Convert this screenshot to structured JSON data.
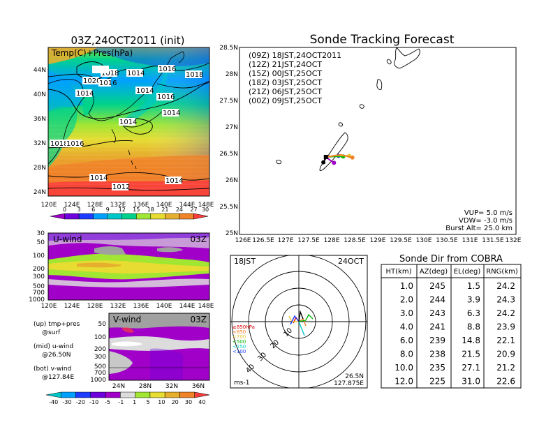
{
  "left_panel": {
    "title": "03Z,24OCT2011 (init)",
    "map_label": "Temp(C)+Pres(hPa)",
    "lat_ticks": [
      "44N",
      "40N",
      "36N",
      "32N",
      "28N",
      "24N"
    ],
    "lon_ticks": [
      "120E",
      "124E",
      "128E",
      "132E",
      "136E",
      "140E",
      "144E",
      "148E"
    ],
    "isobar_labels": [
      "1018",
      "1014",
      "1020",
      "1016",
      "1014",
      "1016",
      "1018",
      "1014",
      "1016",
      "1014",
      "1014",
      "1018",
      "1016",
      "1014",
      "1014",
      "1012",
      "1014"
    ],
    "colorbar_ticks": [
      "0",
      "3",
      "6",
      "9",
      "12",
      "15",
      "18",
      "21",
      "24",
      "27",
      "30"
    ],
    "colorbar_colors": [
      "#a000c8",
      "#6e00dc",
      "#1e3cff",
      "#00a0ff",
      "#00c8c8",
      "#00d28c",
      "#a0e632",
      "#e6dc32",
      "#e6af2d",
      "#f08228",
      "#fa3c3c"
    ]
  },
  "u_wind_panel": {
    "label": "U-wind",
    "time": "03Z",
    "y_ticks": [
      "30",
      "50",
      "100",
      "200",
      "300",
      "500",
      "700",
      "1000"
    ],
    "x_ticks": [
      "120E",
      "124E",
      "128E",
      "132E",
      "136E",
      "140E",
      "144E",
      "148E"
    ]
  },
  "v_wind_panel": {
    "label": "V-wind",
    "time": "03Z",
    "y_ticks": [
      "50",
      "100",
      "200",
      "300",
      "500",
      "700",
      "1000"
    ],
    "x_ticks": [
      "24N",
      "28N",
      "32N",
      "36N"
    ]
  },
  "legend_notes": [
    {
      "line1": "(up) tmp+pres",
      "line2": "@surf"
    },
    {
      "line1": "(mid) u-wind",
      "line2": "@26.50N"
    },
    {
      "line1": "(bot) v-wind",
      "line2": "@127.84E"
    }
  ],
  "wind_colorbar": {
    "ticks": [
      "-40",
      "-30",
      "-20",
      "-10",
      "-5",
      "-1",
      "1",
      "5",
      "10",
      "20",
      "30",
      "40"
    ],
    "colors": [
      "#00c8c8",
      "#00a0ff",
      "#1e3cff",
      "#6e00dc",
      "#a000c8",
      "#dcdcdc",
      "#a0e632",
      "#e6dc32",
      "#e6af2d",
      "#f08228",
      "#fa3c3c"
    ]
  },
  "tracking": {
    "title": "Sonde Tracking Forecast",
    "legend": [
      {
        "text": "(09Z)  18JST,24OCT2011",
        "color": "#000000"
      },
      {
        "text": "(12Z)  21JST,24OCT",
        "color": "#a000c8"
      },
      {
        "text": "(15Z)  00JST,25OCT",
        "color": "#1e3cff"
      },
      {
        "text": "(18Z)  03JST,25OCT",
        "color": "#00b400"
      },
      {
        "text": "(21Z)  06JST,25OCT",
        "color": "#e6c832"
      },
      {
        "text": "(00Z)  09JST,25OCT",
        "color": "#f08228"
      }
    ],
    "params": [
      "VUP=  5.0  m/s",
      "VDW= -3.0  m/s",
      "Burst Alt=  25.0  km"
    ],
    "lat_ticks": [
      "28.5N",
      "28N",
      "27.5N",
      "27N",
      "26.5N",
      "26N",
      "25.5N",
      "25N"
    ],
    "lon_ticks": [
      "126E",
      "126.5E",
      "127E",
      "127.5E",
      "128E",
      "128.5E",
      "129E",
      "129.5E",
      "130E",
      "130.5E",
      "131E",
      "131.5E",
      "132E"
    ]
  },
  "polar": {
    "time_label": "18JST",
    "date_label": "24OCT",
    "ring_labels": [
      "10",
      "20",
      "30",
      "40"
    ],
    "units": "ms-1",
    "location_line1": "26.5N",
    "location_line2": "127.875E",
    "level_legend": [
      {
        "text": "≥850hPa",
        "color": "#e00000"
      },
      {
        "text": "<850",
        "color": "#f08228"
      },
      {
        "text": "<700",
        "color": "#e6c832"
      },
      {
        "text": "<500",
        "color": "#00b400"
      },
      {
        "text": "<250",
        "color": "#00c8c8"
      },
      {
        "text": "<100",
        "color": "#1e3cff"
      }
    ]
  },
  "sonde_dir": {
    "title": "Sonde Dir from COBRA",
    "headers": [
      "HT(km)",
      "AZ(deg)",
      "EL(deg)",
      "RNG(km)"
    ],
    "rows": [
      [
        "1.0",
        "245",
        "1.5",
        "24.2"
      ],
      [
        "2.0",
        "244",
        "3.9",
        "24.3"
      ],
      [
        "3.0",
        "243",
        "6.3",
        "24.2"
      ],
      [
        "4.0",
        "241",
        "8.8",
        "23.9"
      ],
      [
        "6.0",
        "239",
        "14.8",
        "22.1"
      ],
      [
        "8.0",
        "238",
        "21.5",
        "20.9"
      ],
      [
        "10.0",
        "235",
        "27.1",
        "21.2"
      ],
      [
        "12.0",
        "225",
        "31.0",
        "22.6"
      ]
    ]
  },
  "chart_data": [
    {
      "type": "heatmap",
      "title": "03Z,24OCT2011 (init)",
      "label": "Temp(C)+Pres(hPa)",
      "x_range": [
        "120E",
        "148E"
      ],
      "y_range": [
        "23N",
        "47N"
      ],
      "colorbar": [
        0,
        3,
        6,
        9,
        12,
        15,
        18,
        21,
        24,
        27,
        30
      ],
      "isobar_values_hPa": [
        1012,
        1014,
        1016,
        1018,
        1020
      ]
    },
    {
      "type": "heatmap",
      "label": "U-wind",
      "time": "03Z",
      "x_range": [
        "120E",
        "148E"
      ],
      "y_levels_hPa": [
        30,
        50,
        100,
        200,
        300,
        500,
        700,
        1000
      ],
      "colorbar": [
        -40,
        -30,
        -20,
        -10,
        -5,
        -1,
        1,
        5,
        10,
        20,
        30,
        40
      ]
    },
    {
      "type": "heatmap",
      "label": "V-wind",
      "time": "03Z",
      "x_range": [
        "23N",
        "38N"
      ],
      "y_levels_hPa": [
        50,
        100,
        200,
        300,
        500,
        700,
        1000
      ]
    },
    {
      "type": "line",
      "title": "Sonde Tracking Forecast",
      "xlim": [
        126,
        132
      ],
      "ylim": [
        25,
        28.5
      ],
      "launch_point": {
        "lon": 127.875,
        "lat": 26.45
      },
      "tracks": [
        {
          "name": "(09Z) 18JST,24OCT2011",
          "color": "#000000",
          "x": [
            127.875,
            127.86,
            127.84,
            127.82
          ],
          "y": [
            26.45,
            26.42,
            26.38,
            26.35
          ]
        },
        {
          "name": "(12Z) 21JST,24OCT",
          "color": "#a000c8",
          "x": [
            127.875,
            127.95,
            128.05
          ],
          "y": [
            26.45,
            26.4,
            26.34
          ]
        },
        {
          "name": "(15Z) 00JST,25OCT",
          "color": "#1e3cff",
          "x": [
            127.875,
            128.0,
            128.15
          ],
          "y": [
            26.45,
            26.46,
            26.47
          ]
        },
        {
          "name": "(18Z) 03JST,25OCT",
          "color": "#00b400",
          "x": [
            127.875,
            128.05,
            128.25
          ],
          "y": [
            26.45,
            26.46,
            26.46
          ]
        },
        {
          "name": "(21Z) 06JST,25OCT",
          "color": "#e6c832",
          "x": [
            127.875,
            128.1,
            128.38
          ],
          "y": [
            26.45,
            26.48,
            26.47
          ]
        },
        {
          "name": "(00Z) 09JST,25OCT",
          "color": "#f08228",
          "x": [
            127.875,
            128.2,
            128.45
          ],
          "y": [
            26.45,
            26.49,
            26.44
          ]
        }
      ]
    },
    {
      "type": "table",
      "title": "Sonde Dir from COBRA",
      "columns": [
        "HT(km)",
        "AZ(deg)",
        "EL(deg)",
        "RNG(km)"
      ],
      "rows": [
        [
          1.0,
          245,
          1.5,
          24.2
        ],
        [
          2.0,
          244,
          3.9,
          24.3
        ],
        [
          3.0,
          243,
          6.3,
          24.2
        ],
        [
          4.0,
          241,
          8.8,
          23.9
        ],
        [
          6.0,
          239,
          14.8,
          22.1
        ],
        [
          8.0,
          238,
          21.5,
          20.9
        ],
        [
          10.0,
          235,
          27.1,
          21.2
        ],
        [
          12.0,
          225,
          31.0,
          22.6
        ]
      ]
    }
  ]
}
